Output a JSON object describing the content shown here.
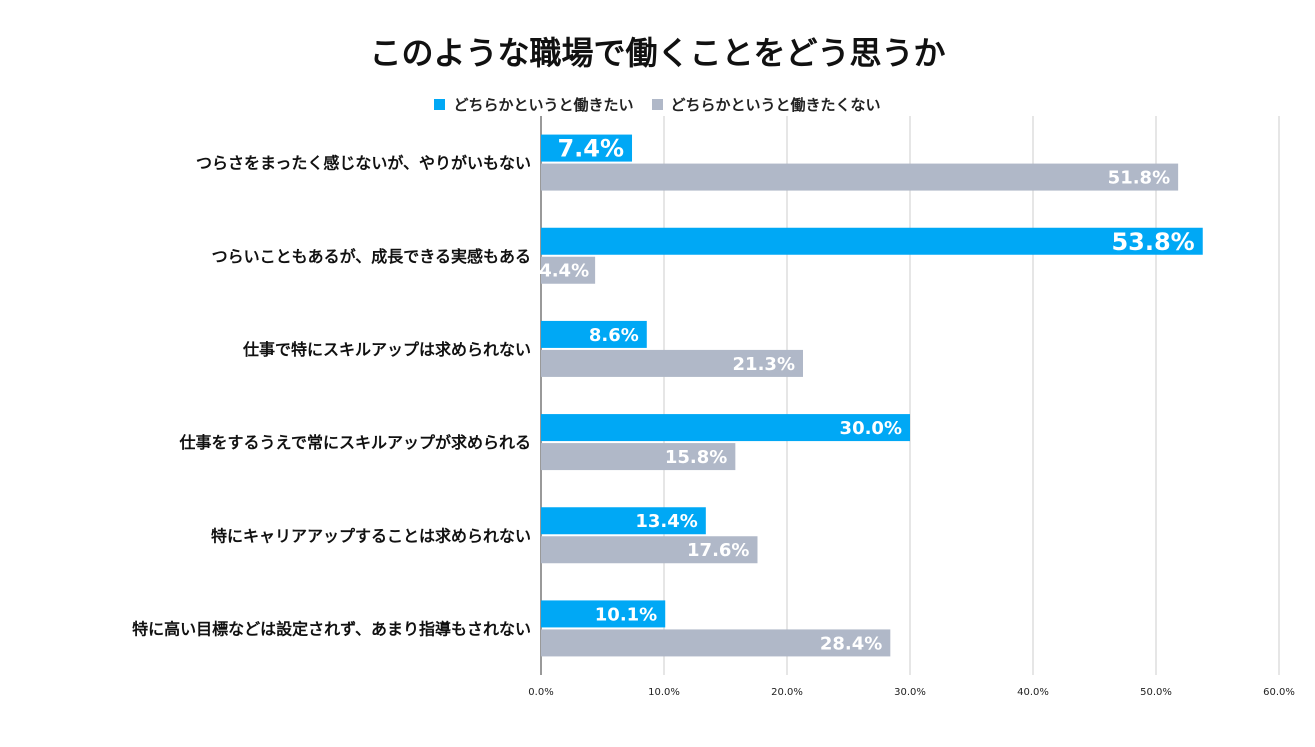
{
  "chart_data": {
    "type": "bar",
    "orientation": "horizontal",
    "title": "このような職場で働くことをどう思うか",
    "categories": [
      "つらさをまったく感じないが、やりがいもない",
      "つらいこともあるが、成長できる実感もある",
      "仕事で特にスキルアップは求められない",
      "仕事をするうえで常にスキルアップが求められる",
      "特にキャリアアップすることは求められない",
      "特に高い目標などは設定されず、あまり指導もされない"
    ],
    "series": [
      {
        "name": "どちらかというと働きたい",
        "color": "#00a8f5",
        "values": [
          7.4,
          53.8,
          8.6,
          30.0,
          13.4,
          10.1
        ],
        "labels": [
          "7.4%",
          "53.8%",
          "8.6%",
          "30.0%",
          "13.4%",
          "10.1%"
        ]
      },
      {
        "name": "どちらかというと働きたくない",
        "color": "#b0b8c8",
        "values": [
          51.8,
          4.4,
          21.3,
          15.8,
          17.6,
          28.4
        ],
        "labels": [
          "51.8%",
          "4.4%",
          "21.3%",
          "15.8%",
          "17.6%",
          "28.4%"
        ]
      }
    ],
    "xlim": [
      0,
      60
    ],
    "ticks": [
      "0.0%",
      "10.0%",
      "20.0%",
      "30.0%",
      "40.0%",
      "50.0%",
      "60.0%"
    ],
    "legend_position": "top",
    "grid": true
  }
}
